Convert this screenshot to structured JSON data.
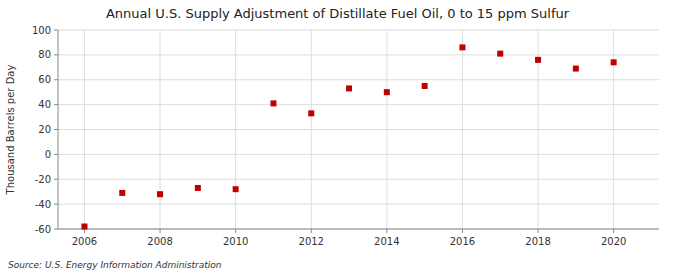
{
  "chart_data": {
    "type": "scatter",
    "title": "Annual U.S. Supply Adjustment of Distillate Fuel Oil, 0 to 15 ppm Sulfur",
    "y_label": "Thousand Barrels per Day",
    "source": "Source: U.S. Energy Information Administration",
    "x": [
      2006,
      2007,
      2008,
      2009,
      2010,
      2011,
      2012,
      2013,
      2014,
      2015,
      2016,
      2017,
      2018,
      2019,
      2020
    ],
    "values": [
      -58,
      -31,
      -32,
      -27,
      -28,
      41,
      33,
      53,
      50,
      55,
      86,
      81,
      76,
      69,
      74
    ],
    "color": "#c00000",
    "marker": "square",
    "xlim": [
      2005.3,
      2021.2
    ],
    "xticks": [
      2006,
      2008,
      2010,
      2012,
      2014,
      2016,
      2018,
      2020
    ],
    "ylim": [
      -60,
      100
    ],
    "yticks": [
      -60,
      -40,
      -20,
      0,
      20,
      40,
      60,
      80,
      100
    ],
    "grid": true
  }
}
